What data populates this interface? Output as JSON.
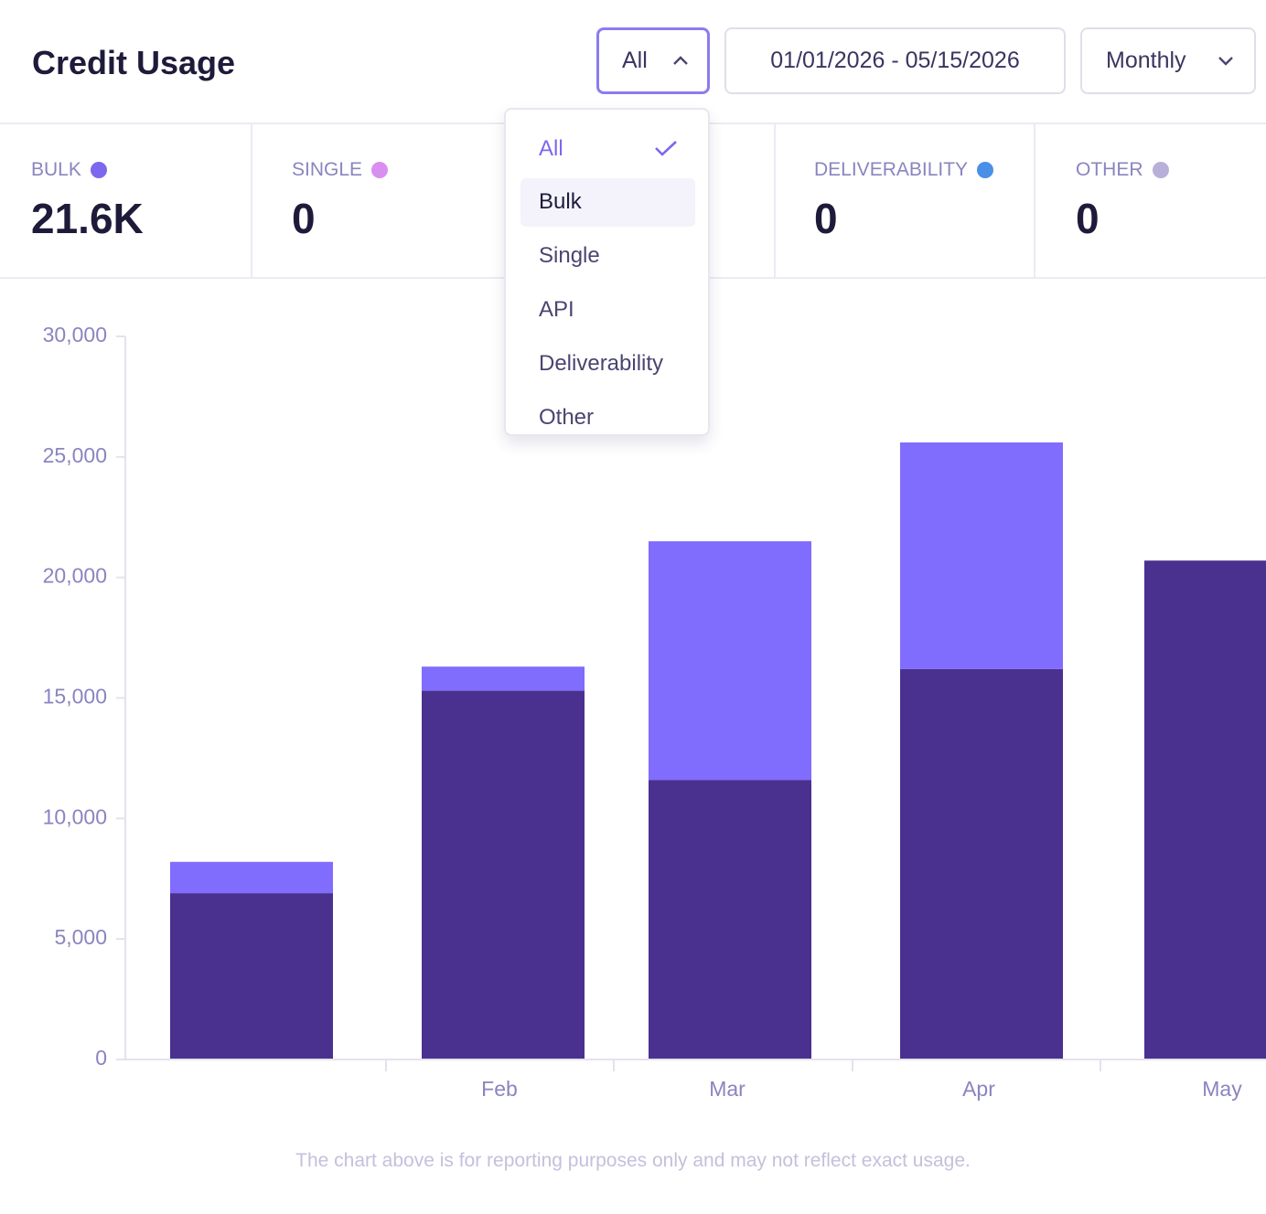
{
  "header": {
    "title": "Credit Usage",
    "filter": "All",
    "date_range": "01/01/2026 - 05/15/2026",
    "period": "Monthly"
  },
  "dropdown": {
    "items": [
      {
        "label": "All",
        "selected": true
      },
      {
        "label": "Bulk",
        "highlighted": true
      },
      {
        "label": "Single"
      },
      {
        "label": "API"
      },
      {
        "label": "Deliverability"
      },
      {
        "label": "Other"
      }
    ]
  },
  "stats": [
    {
      "label": "BULK",
      "value": "21.6K",
      "color": "#7b68ee"
    },
    {
      "label": "SINGLE",
      "value": "0",
      "color": "#d98ff0"
    },
    {
      "label": "DELIVERABILITY",
      "value": "0",
      "color": "#4a90e8"
    },
    {
      "label": "OTHER",
      "value": "0",
      "color": "#b8b0d8"
    }
  ],
  "chart_data": {
    "type": "stacked_bar",
    "categories": [
      null,
      "Feb",
      "Mar",
      "Apr",
      "May"
    ],
    "series": [
      {
        "color": "#4a318f",
        "values": [
          6900,
          15300,
          11600,
          16200,
          20700
        ]
      },
      {
        "color": "#806cfd",
        "values": [
          1300,
          1000,
          9900,
          9400,
          0
        ]
      }
    ],
    "ylim": [
      0,
      30000
    ],
    "yticks": [
      0,
      {
        "value": 5000,
        "label": "5,000"
      },
      {
        "value": 10000,
        "label": "10,000"
      },
      {
        "value": 15000,
        "label": "15,000"
      },
      {
        "value": 20000,
        "label": "20,000"
      },
      {
        "value": 25000,
        "label": "25,000"
      },
      {
        "value": 30000,
        "label": "30,000"
      }
    ]
  },
  "footnote": "The chart above is for reporting purposes only and may not reflect exact usage."
}
